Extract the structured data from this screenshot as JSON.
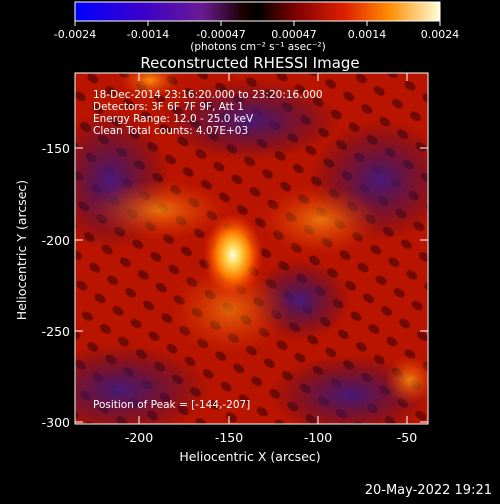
{
  "colorbar": {
    "tick_labels": [
      "-0.0024",
      "-0.0014",
      "-0.00047",
      "0.00047",
      "0.0014",
      "0.0024"
    ],
    "unit_label": "(photons cm⁻² s⁻¹ asec⁻²)"
  },
  "title": "Reconstructed RHESSI Image",
  "info": {
    "line1": "18-Dec-2014 23:16:20.000 to 23:20:16.000",
    "line2": "Detectors: 3F 6F 7F 9F, Att 1",
    "line3": "Energy Range: 12.0 - 25.0 keV",
    "line4": "Clean     Total counts: 4.07E+03",
    "peak": "Position of Peak = [-144,-207]"
  },
  "axes": {
    "xlabel": "Heliocentric X (arcsec)",
    "ylabel": "Heliocentric Y (arcsec)",
    "xticks": [
      "-200",
      "-150",
      "-100",
      "-50"
    ],
    "yticks": [
      "-150",
      "-200",
      "-250",
      "-300"
    ]
  },
  "footer": {
    "timestamp": "20-May-2022 19:21"
  },
  "colors": {
    "background": "#000000",
    "frame": "#ffffff"
  }
}
